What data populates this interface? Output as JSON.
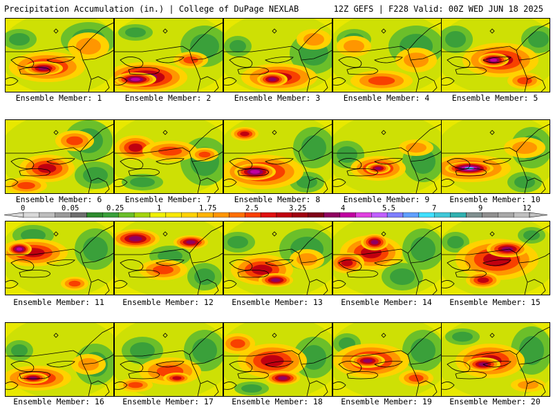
{
  "header": {
    "title": "Precipitation Accumulation (in.) | College of DuPage NEXLAB",
    "run_info": "12Z GEFS | F228 Valid: 00Z WED JUN 18 2025"
  },
  "members": [
    {
      "label": "Ensemble Member: 1"
    },
    {
      "label": "Ensemble Member: 2"
    },
    {
      "label": "Ensemble Member: 3"
    },
    {
      "label": "Ensemble Member: 4"
    },
    {
      "label": "Ensemble Member: 5"
    },
    {
      "label": "Ensemble Member: 6"
    },
    {
      "label": "Ensemble Member: 7"
    },
    {
      "label": "Ensemble Member: 8"
    },
    {
      "label": "Ensemble Member: 9"
    },
    {
      "label": "Ensemble Member: 10"
    },
    {
      "label": "Ensemble Member: 11"
    },
    {
      "label": "Ensemble Member: 12"
    },
    {
      "label": "Ensemble Member: 13"
    },
    {
      "label": "Ensemble Member: 14"
    },
    {
      "label": "Ensemble Member: 15"
    },
    {
      "label": "Ensemble Member: 16"
    },
    {
      "label": "Ensemble Member: 17"
    },
    {
      "label": "Ensemble Member: 18"
    },
    {
      "label": "Ensemble Member: 19"
    },
    {
      "label": "Ensemble Member: 20"
    }
  ],
  "colorbar": {
    "labels": [
      "0",
      "0.05",
      "0.25",
      "1",
      "1.75",
      "2.5",
      "3.25",
      "4",
      "5.5",
      "7",
      "9",
      "12"
    ],
    "colors": [
      "#d9d9d9",
      "#bdbdbd",
      "#9a9a9a",
      "#6f6f6f",
      "#2e8b2e",
      "#3aa03a",
      "#6bbf2a",
      "#a4d40a",
      "#f0f000",
      "#f8e800",
      "#ffd200",
      "#ffb400",
      "#ff9600",
      "#ff7000",
      "#f84000",
      "#e01010",
      "#c00010",
      "#a00010",
      "#800018",
      "#900060",
      "#c000a0",
      "#e040e0",
      "#c060ff",
      "#8080ff",
      "#60a0ff",
      "#40e0ff",
      "#40c8d8",
      "#30b0b0",
      "#809090",
      "#909090",
      "#a8a8a8",
      "#c0c0c0"
    ]
  },
  "chart_data": {
    "type": "heatmap",
    "title": "Precipitation Accumulation (in.)",
    "members": [
      {
        "name": "Ensemble Member: 1",
        "peak_color": "#e01010"
      },
      {
        "name": "Ensemble Member: 2",
        "peak_color": "#c000a0"
      },
      {
        "name": "Ensemble Member: 3",
        "peak_color": "#c00010"
      },
      {
        "name": "Ensemble Member: 4",
        "peak_color": "#ff7000"
      },
      {
        "name": "Ensemble Member: 5",
        "peak_color": "#c000a0"
      },
      {
        "name": "Ensemble Member: 6",
        "peak_color": "#e01010"
      },
      {
        "name": "Ensemble Member: 7",
        "peak_color": "#c00010"
      },
      {
        "name": "Ensemble Member: 8",
        "peak_color": "#e040e0"
      },
      {
        "name": "Ensemble Member: 9",
        "peak_color": "#c00010"
      },
      {
        "name": "Ensemble Member: 10",
        "peak_color": "#40e0ff"
      },
      {
        "name": "Ensemble Member: 11",
        "peak_color": "#c000a0"
      },
      {
        "name": "Ensemble Member: 12",
        "peak_color": "#c000a0"
      },
      {
        "name": "Ensemble Member: 13",
        "peak_color": "#c00010"
      },
      {
        "name": "Ensemble Member: 14",
        "peak_color": "#c00010"
      },
      {
        "name": "Ensemble Member: 15",
        "peak_color": "#c00010"
      },
      {
        "name": "Ensemble Member: 16",
        "peak_color": "#e01010"
      },
      {
        "name": "Ensemble Member: 17",
        "peak_color": "#f84000"
      },
      {
        "name": "Ensemble Member: 18",
        "peak_color": "#e01010"
      },
      {
        "name": "Ensemble Member: 19",
        "peak_color": "#c00010"
      },
      {
        "name": "Ensemble Member: 20",
        "peak_color": "#e01010"
      }
    ]
  }
}
